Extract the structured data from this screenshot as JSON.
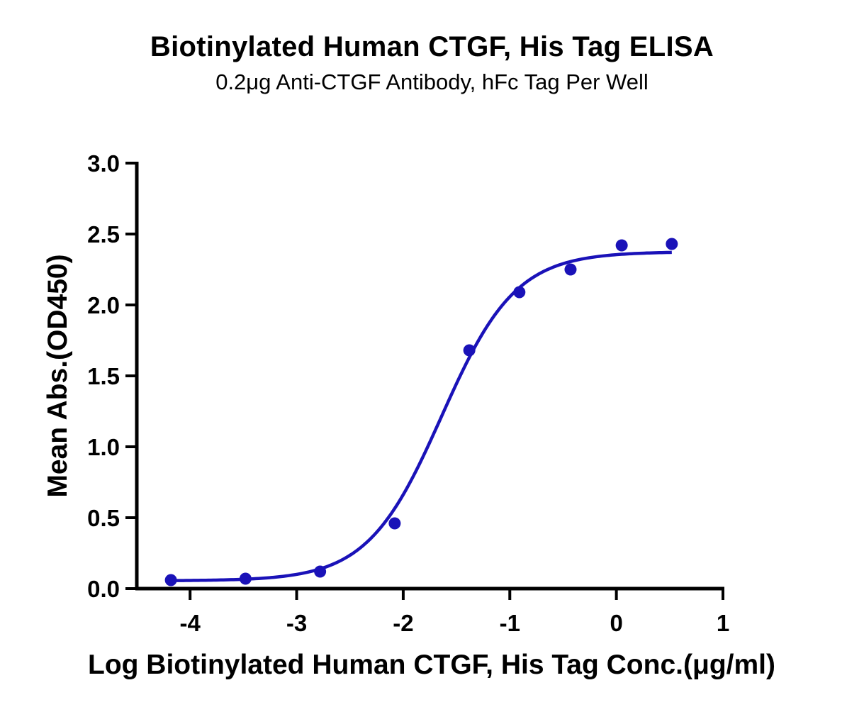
{
  "chart_data": {
    "type": "scatter",
    "title": "Biotinylated Human CTGF, His Tag ELISA",
    "subtitle": "0.2μg Anti-CTGF Antibody, hFc Tag Per Well",
    "xlabel": "Log Biotinylated Human CTGF, His Tag Conc.(μg/ml)",
    "ylabel": "Mean Abs.(OD450)",
    "xlim": [
      -4.5,
      1
    ],
    "ylim": [
      0,
      3.0
    ],
    "xticks": [
      -4,
      -3,
      -2,
      -1,
      0,
      1
    ],
    "xtick_labels": [
      "-4",
      "-3",
      "-2",
      "-1",
      "0",
      "1"
    ],
    "yticks": [
      0,
      0.5,
      1.0,
      1.5,
      2.0,
      2.5,
      3.0
    ],
    "ytick_labels": [
      "0.0",
      "0.5",
      "1.0",
      "1.5",
      "2.0",
      "2.5",
      "3.0"
    ],
    "grid": false,
    "color": "#1a12b8",
    "series": [
      {
        "x": [
          -4.18,
          -3.48,
          -2.78,
          -2.08,
          -1.38,
          -0.91,
          -0.43,
          0.05,
          0.52
        ],
        "y": [
          0.06,
          0.07,
          0.12,
          0.46,
          1.68,
          2.09,
          2.25,
          2.42,
          2.43
        ]
      }
    ],
    "fit": {
      "model": "4PL",
      "bottom": 0.055,
      "top": 2.375,
      "logEC50": -1.64,
      "hill": 1.25,
      "x_range": [
        -4.18,
        0.52
      ]
    }
  }
}
